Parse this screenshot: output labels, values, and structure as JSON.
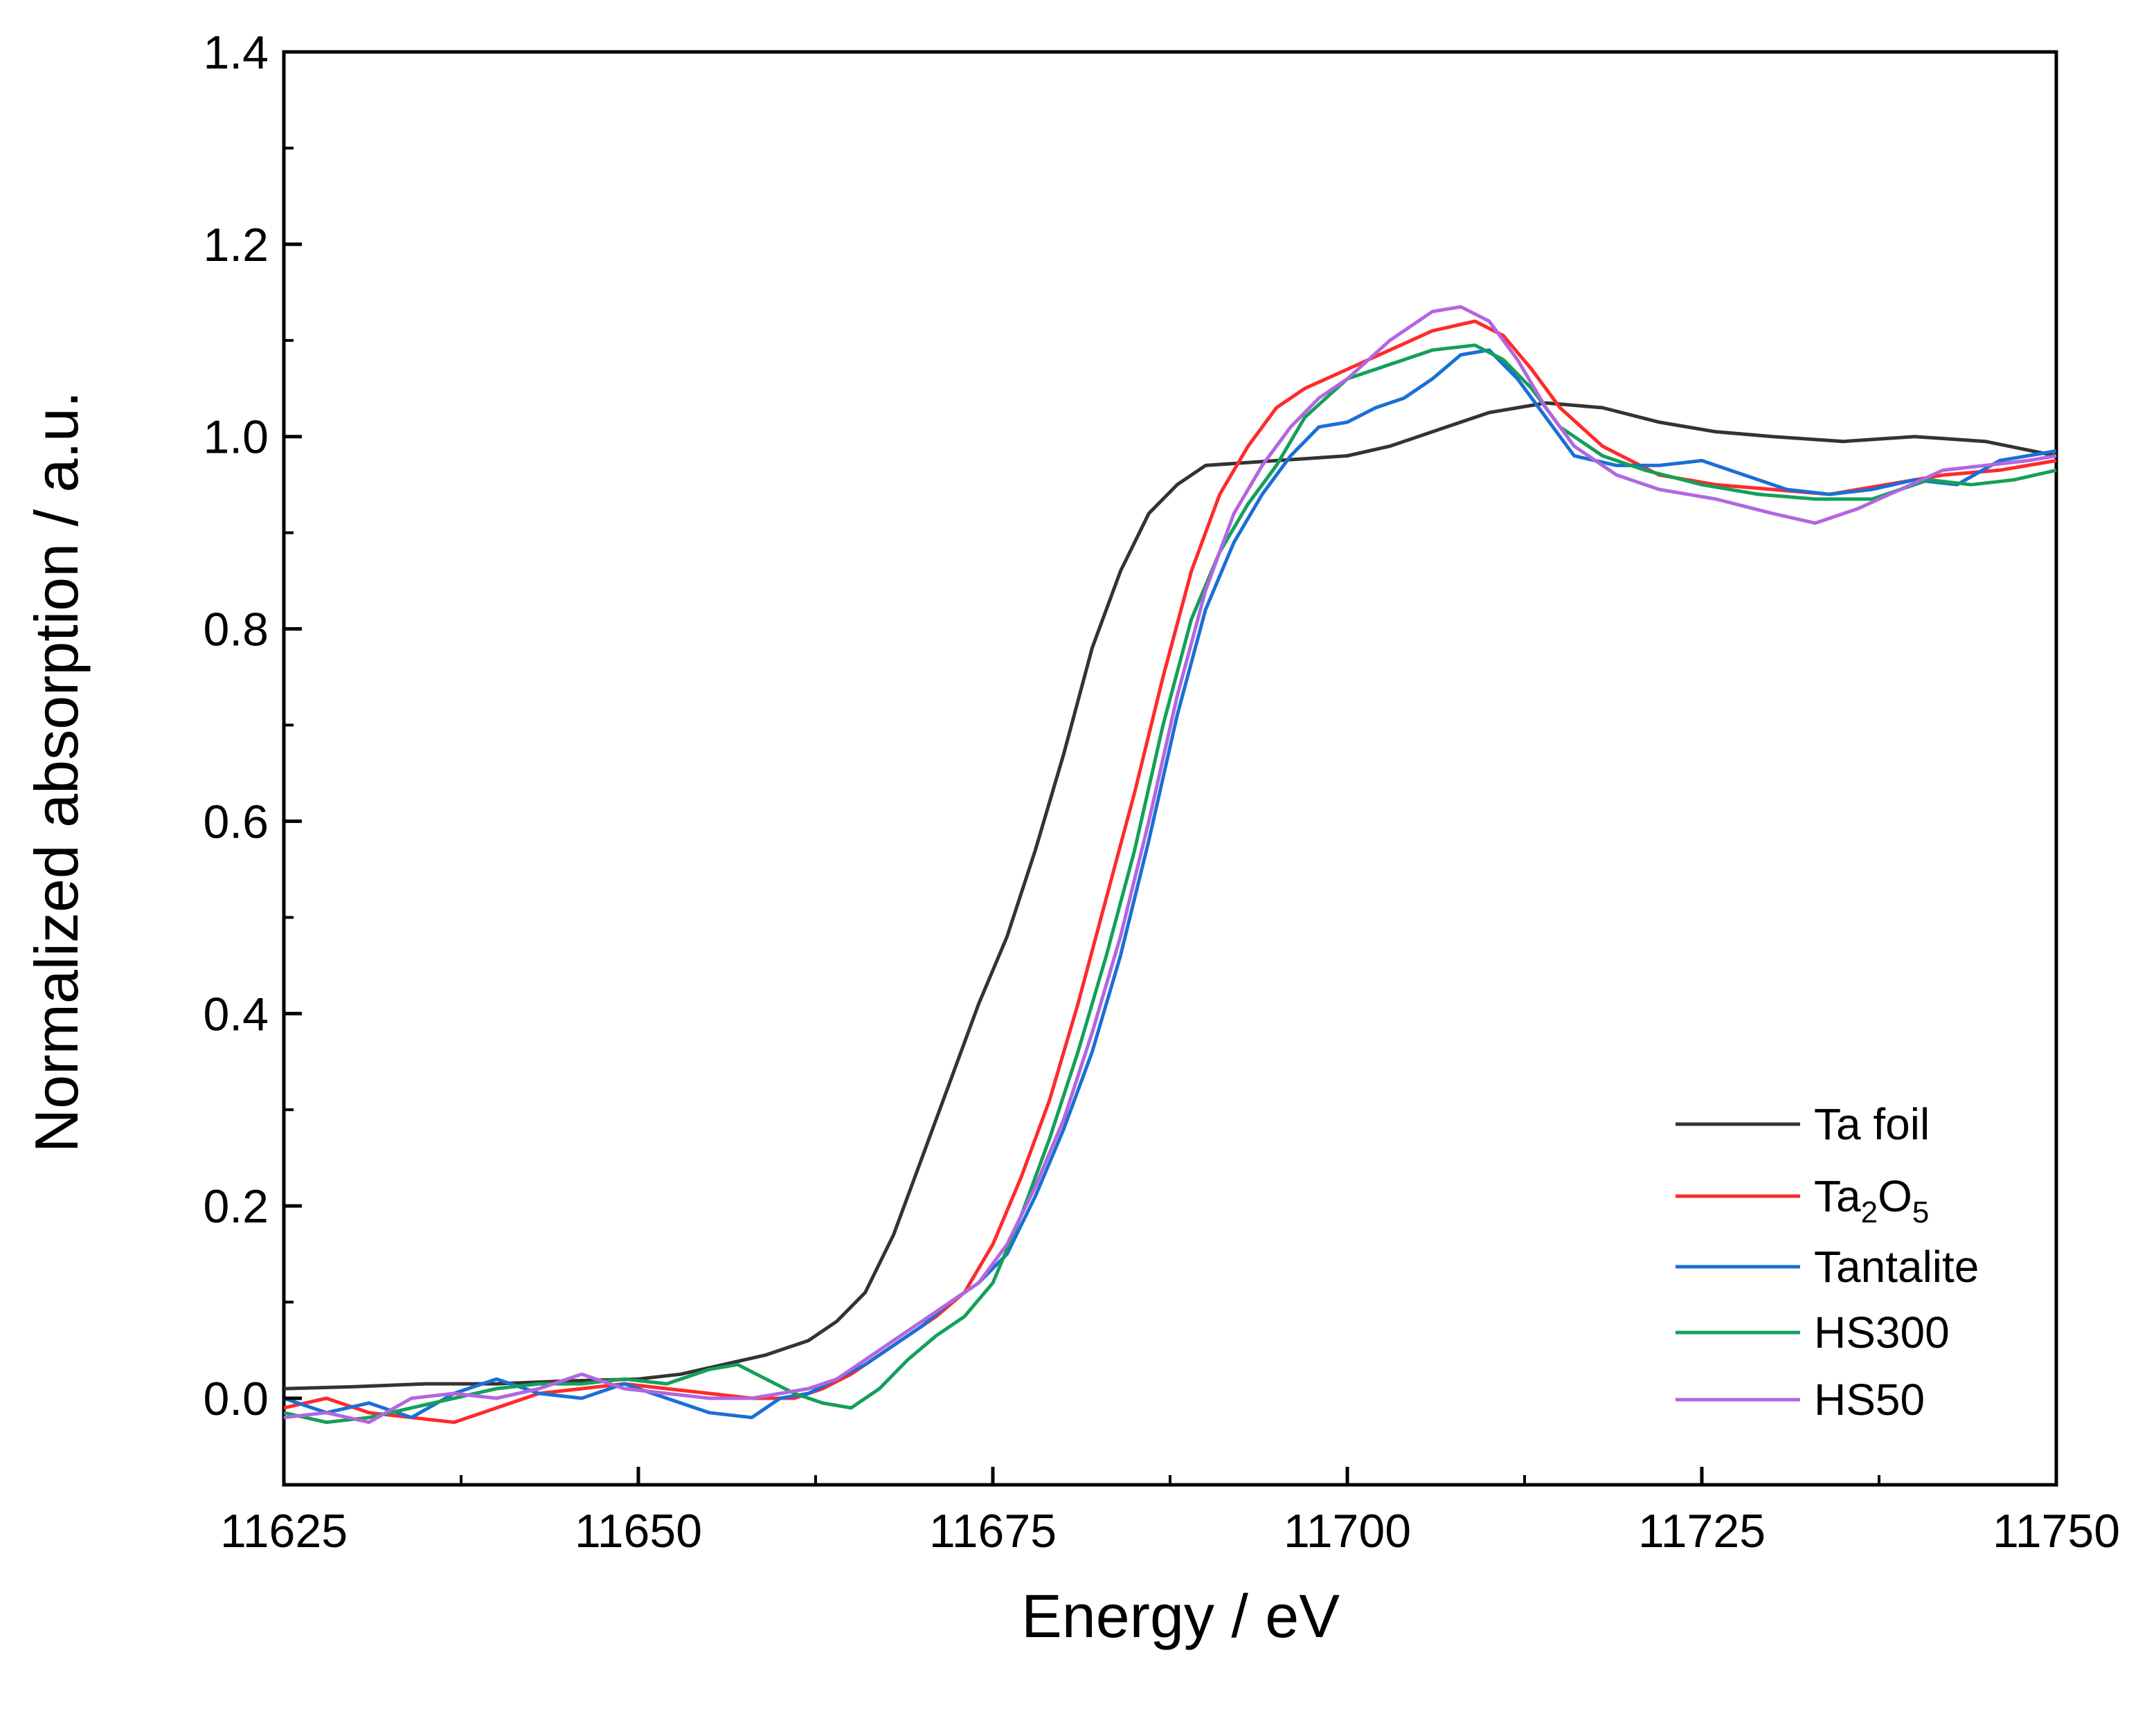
{
  "chart_data": {
    "type": "line",
    "title": "",
    "xlabel": "Energy / eV",
    "ylabel": "Normalized absorption / a.u.",
    "xlim": [
      11625,
      11750
    ],
    "ylim": [
      -0.09,
      1.4
    ],
    "x_ticks": [
      11625,
      11650,
      11675,
      11700,
      11725,
      11750
    ],
    "x_tick_labels": [
      "11625",
      "11650",
      "11675",
      "11700",
      "11725",
      "11750"
    ],
    "y_ticks": [
      0.0,
      0.2,
      0.4,
      0.6,
      0.8,
      1.0,
      1.2,
      1.4
    ],
    "y_tick_labels": [
      "0.0",
      "0.2",
      "0.4",
      "0.6",
      "0.8",
      "1.0",
      "1.2",
      "1.4"
    ],
    "grid": false,
    "legend_position": "bottom-right",
    "series": [
      {
        "name": "Ta foil",
        "name_main": "Ta foil",
        "color": "#333333",
        "points": [
          [
            11625,
            0.01
          ],
          [
            11630,
            0.012
          ],
          [
            11635,
            0.015
          ],
          [
            11640,
            0.015
          ],
          [
            11645,
            0.018
          ],
          [
            11650,
            0.02
          ],
          [
            11653,
            0.025
          ],
          [
            11656,
            0.035
          ],
          [
            11659,
            0.045
          ],
          [
            11662,
            0.06
          ],
          [
            11664,
            0.08
          ],
          [
            11666,
            0.11
          ],
          [
            11668,
            0.17
          ],
          [
            11670,
            0.25
          ],
          [
            11672,
            0.33
          ],
          [
            11674,
            0.41
          ],
          [
            11676,
            0.48
          ],
          [
            11678,
            0.57
          ],
          [
            11680,
            0.67
          ],
          [
            11682,
            0.78
          ],
          [
            11684,
            0.86
          ],
          [
            11686,
            0.92
          ],
          [
            11688,
            0.95
          ],
          [
            11690,
            0.97
          ],
          [
            11695,
            0.975
          ],
          [
            11700,
            0.98
          ],
          [
            11703,
            0.99
          ],
          [
            11707,
            1.01
          ],
          [
            11710,
            1.025
          ],
          [
            11714,
            1.035
          ],
          [
            11718,
            1.03
          ],
          [
            11722,
            1.015
          ],
          [
            11726,
            1.005
          ],
          [
            11730,
            1.0
          ],
          [
            11735,
            0.995
          ],
          [
            11740,
            1.0
          ],
          [
            11745,
            0.995
          ],
          [
            11750,
            0.98
          ]
        ]
      },
      {
        "name": "Ta2O5",
        "name_main": "Ta",
        "name_sub1": "2",
        "name_mid": "O",
        "name_sub2": "5",
        "color": "#ff2a2a",
        "points": [
          [
            11625,
            -0.01
          ],
          [
            11628,
            0.0
          ],
          [
            11631,
            -0.015
          ],
          [
            11634,
            -0.02
          ],
          [
            11637,
            -0.025
          ],
          [
            11640,
            -0.01
          ],
          [
            11643,
            0.005
          ],
          [
            11646,
            0.01
          ],
          [
            11649,
            0.015
          ],
          [
            11652,
            0.01
          ],
          [
            11655,
            0.005
          ],
          [
            11658,
            0.0
          ],
          [
            11661,
            0.0
          ],
          [
            11663,
            0.01
          ],
          [
            11665,
            0.025
          ],
          [
            11667,
            0.045
          ],
          [
            11669,
            0.065
          ],
          [
            11671,
            0.085
          ],
          [
            11673,
            0.11
          ],
          [
            11675,
            0.16
          ],
          [
            11677,
            0.23
          ],
          [
            11679,
            0.31
          ],
          [
            11681,
            0.41
          ],
          [
            11683,
            0.52
          ],
          [
            11685,
            0.63
          ],
          [
            11687,
            0.75
          ],
          [
            11689,
            0.86
          ],
          [
            11691,
            0.94
          ],
          [
            11693,
            0.99
          ],
          [
            11695,
            1.03
          ],
          [
            11697,
            1.05
          ],
          [
            11700,
            1.07
          ],
          [
            11703,
            1.09
          ],
          [
            11706,
            1.11
          ],
          [
            11709,
            1.12
          ],
          [
            11711,
            1.105
          ],
          [
            11713,
            1.07
          ],
          [
            11715,
            1.03
          ],
          [
            11718,
            0.99
          ],
          [
            11722,
            0.96
          ],
          [
            11726,
            0.95
          ],
          [
            11730,
            0.945
          ],
          [
            11734,
            0.94
          ],
          [
            11738,
            0.95
          ],
          [
            11742,
            0.96
          ],
          [
            11746,
            0.965
          ],
          [
            11750,
            0.975
          ]
        ]
      },
      {
        "name": "Tantalite",
        "name_main": "Tantalite",
        "color": "#1a6fd6",
        "points": [
          [
            11625,
            0.0
          ],
          [
            11628,
            -0.015
          ],
          [
            11631,
            -0.005
          ],
          [
            11634,
            -0.02
          ],
          [
            11637,
            0.005
          ],
          [
            11640,
            0.02
          ],
          [
            11643,
            0.005
          ],
          [
            11646,
            0.0
          ],
          [
            11649,
            0.015
          ],
          [
            11652,
            0.0
          ],
          [
            11655,
            -0.015
          ],
          [
            11658,
            -0.02
          ],
          [
            11660,
            0.0
          ],
          [
            11662,
            0.005
          ],
          [
            11664,
            0.02
          ],
          [
            11666,
            0.035
          ],
          [
            11668,
            0.055
          ],
          [
            11670,
            0.075
          ],
          [
            11672,
            0.1
          ],
          [
            11674,
            0.12
          ],
          [
            11676,
            0.15
          ],
          [
            11678,
            0.21
          ],
          [
            11680,
            0.28
          ],
          [
            11682,
            0.36
          ],
          [
            11684,
            0.46
          ],
          [
            11686,
            0.58
          ],
          [
            11688,
            0.71
          ],
          [
            11690,
            0.82
          ],
          [
            11692,
            0.89
          ],
          [
            11694,
            0.94
          ],
          [
            11696,
            0.98
          ],
          [
            11698,
            1.01
          ],
          [
            11700,
            1.015
          ],
          [
            11702,
            1.03
          ],
          [
            11704,
            1.04
          ],
          [
            11706,
            1.06
          ],
          [
            11708,
            1.085
          ],
          [
            11710,
            1.09
          ],
          [
            11712,
            1.06
          ],
          [
            11714,
            1.02
          ],
          [
            11716,
            0.98
          ],
          [
            11719,
            0.97
          ],
          [
            11722,
            0.97
          ],
          [
            11725,
            0.975
          ],
          [
            11728,
            0.96
          ],
          [
            11731,
            0.945
          ],
          [
            11734,
            0.94
          ],
          [
            11737,
            0.945
          ],
          [
            11740,
            0.955
          ],
          [
            11743,
            0.95
          ],
          [
            11746,
            0.975
          ],
          [
            11750,
            0.985
          ]
        ]
      },
      {
        "name": "HS300",
        "name_main": "HS300",
        "color": "#13a05a",
        "points": [
          [
            11625,
            -0.015
          ],
          [
            11628,
            -0.025
          ],
          [
            11631,
            -0.02
          ],
          [
            11634,
            -0.01
          ],
          [
            11637,
            0.0
          ],
          [
            11640,
            0.01
          ],
          [
            11643,
            0.015
          ],
          [
            11646,
            0.015
          ],
          [
            11649,
            0.02
          ],
          [
            11652,
            0.015
          ],
          [
            11655,
            0.03
          ],
          [
            11657,
            0.035
          ],
          [
            11659,
            0.02
          ],
          [
            11661,
            0.005
          ],
          [
            11663,
            -0.005
          ],
          [
            11665,
            -0.01
          ],
          [
            11667,
            0.01
          ],
          [
            11669,
            0.04
          ],
          [
            11671,
            0.065
          ],
          [
            11673,
            0.085
          ],
          [
            11675,
            0.12
          ],
          [
            11677,
            0.19
          ],
          [
            11679,
            0.27
          ],
          [
            11681,
            0.36
          ],
          [
            11683,
            0.46
          ],
          [
            11685,
            0.57
          ],
          [
            11687,
            0.7
          ],
          [
            11689,
            0.81
          ],
          [
            11691,
            0.88
          ],
          [
            11693,
            0.93
          ],
          [
            11695,
            0.97
          ],
          [
            11697,
            1.02
          ],
          [
            11700,
            1.06
          ],
          [
            11703,
            1.075
          ],
          [
            11706,
            1.09
          ],
          [
            11709,
            1.095
          ],
          [
            11711,
            1.08
          ],
          [
            11713,
            1.05
          ],
          [
            11715,
            1.01
          ],
          [
            11718,
            0.98
          ],
          [
            11721,
            0.965
          ],
          [
            11725,
            0.95
          ],
          [
            11729,
            0.94
          ],
          [
            11733,
            0.935
          ],
          [
            11737,
            0.935
          ],
          [
            11741,
            0.955
          ],
          [
            11744,
            0.95
          ],
          [
            11747,
            0.955
          ],
          [
            11750,
            0.965
          ]
        ]
      },
      {
        "name": "HS50",
        "name_main": "HS50",
        "color": "#b266e0",
        "points": [
          [
            11625,
            -0.02
          ],
          [
            11628,
            -0.015
          ],
          [
            11631,
            -0.025
          ],
          [
            11634,
            0.0
          ],
          [
            11637,
            0.005
          ],
          [
            11640,
            0.0
          ],
          [
            11643,
            0.01
          ],
          [
            11646,
            0.025
          ],
          [
            11649,
            0.01
          ],
          [
            11652,
            0.005
          ],
          [
            11655,
            0.0
          ],
          [
            11658,
            0.0
          ],
          [
            11660,
            0.005
          ],
          [
            11662,
            0.01
          ],
          [
            11664,
            0.02
          ],
          [
            11666,
            0.04
          ],
          [
            11668,
            0.06
          ],
          [
            11670,
            0.08
          ],
          [
            11672,
            0.1
          ],
          [
            11674,
            0.12
          ],
          [
            11676,
            0.16
          ],
          [
            11678,
            0.22
          ],
          [
            11680,
            0.29
          ],
          [
            11682,
            0.38
          ],
          [
            11684,
            0.48
          ],
          [
            11686,
            0.6
          ],
          [
            11688,
            0.73
          ],
          [
            11690,
            0.84
          ],
          [
            11692,
            0.92
          ],
          [
            11694,
            0.97
          ],
          [
            11696,
            1.01
          ],
          [
            11698,
            1.04
          ],
          [
            11700,
            1.06
          ],
          [
            11703,
            1.1
          ],
          [
            11706,
            1.13
          ],
          [
            11708,
            1.135
          ],
          [
            11710,
            1.12
          ],
          [
            11712,
            1.08
          ],
          [
            11714,
            1.03
          ],
          [
            11716,
            0.99
          ],
          [
            11719,
            0.96
          ],
          [
            11722,
            0.945
          ],
          [
            11726,
            0.935
          ],
          [
            11730,
            0.92
          ],
          [
            11733,
            0.91
          ],
          [
            11736,
            0.925
          ],
          [
            11739,
            0.945
          ],
          [
            11742,
            0.965
          ],
          [
            11745,
            0.97
          ],
          [
            11748,
            0.975
          ],
          [
            11750,
            0.98
          ]
        ]
      }
    ]
  }
}
